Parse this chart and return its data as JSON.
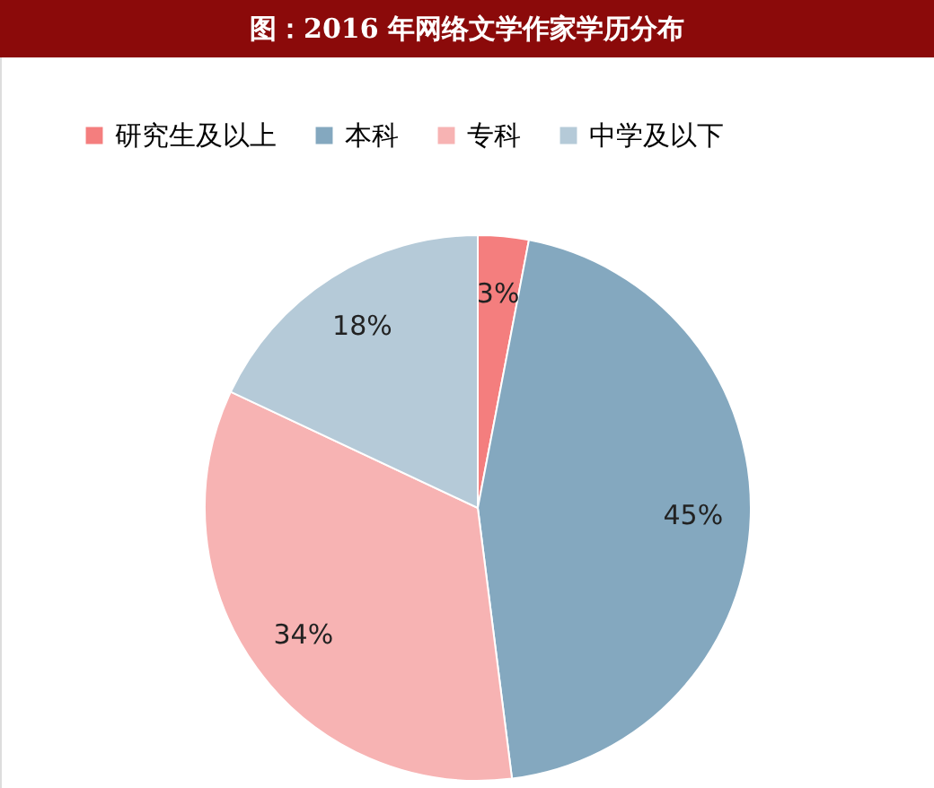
{
  "chart_data": {
    "type": "pie",
    "title": "图：2016 年网络文学作家学历分布",
    "categories": [
      "研究生及以上",
      "本科",
      "专科",
      "中学及以下"
    ],
    "values": [
      3,
      45,
      34,
      18
    ],
    "value_labels": [
      "3%",
      "45%",
      "34%",
      "18%"
    ],
    "colors": [
      "#f47e7e",
      "#84a8bf",
      "#f7b3b3",
      "#b5cad8"
    ],
    "legend": "top"
  }
}
